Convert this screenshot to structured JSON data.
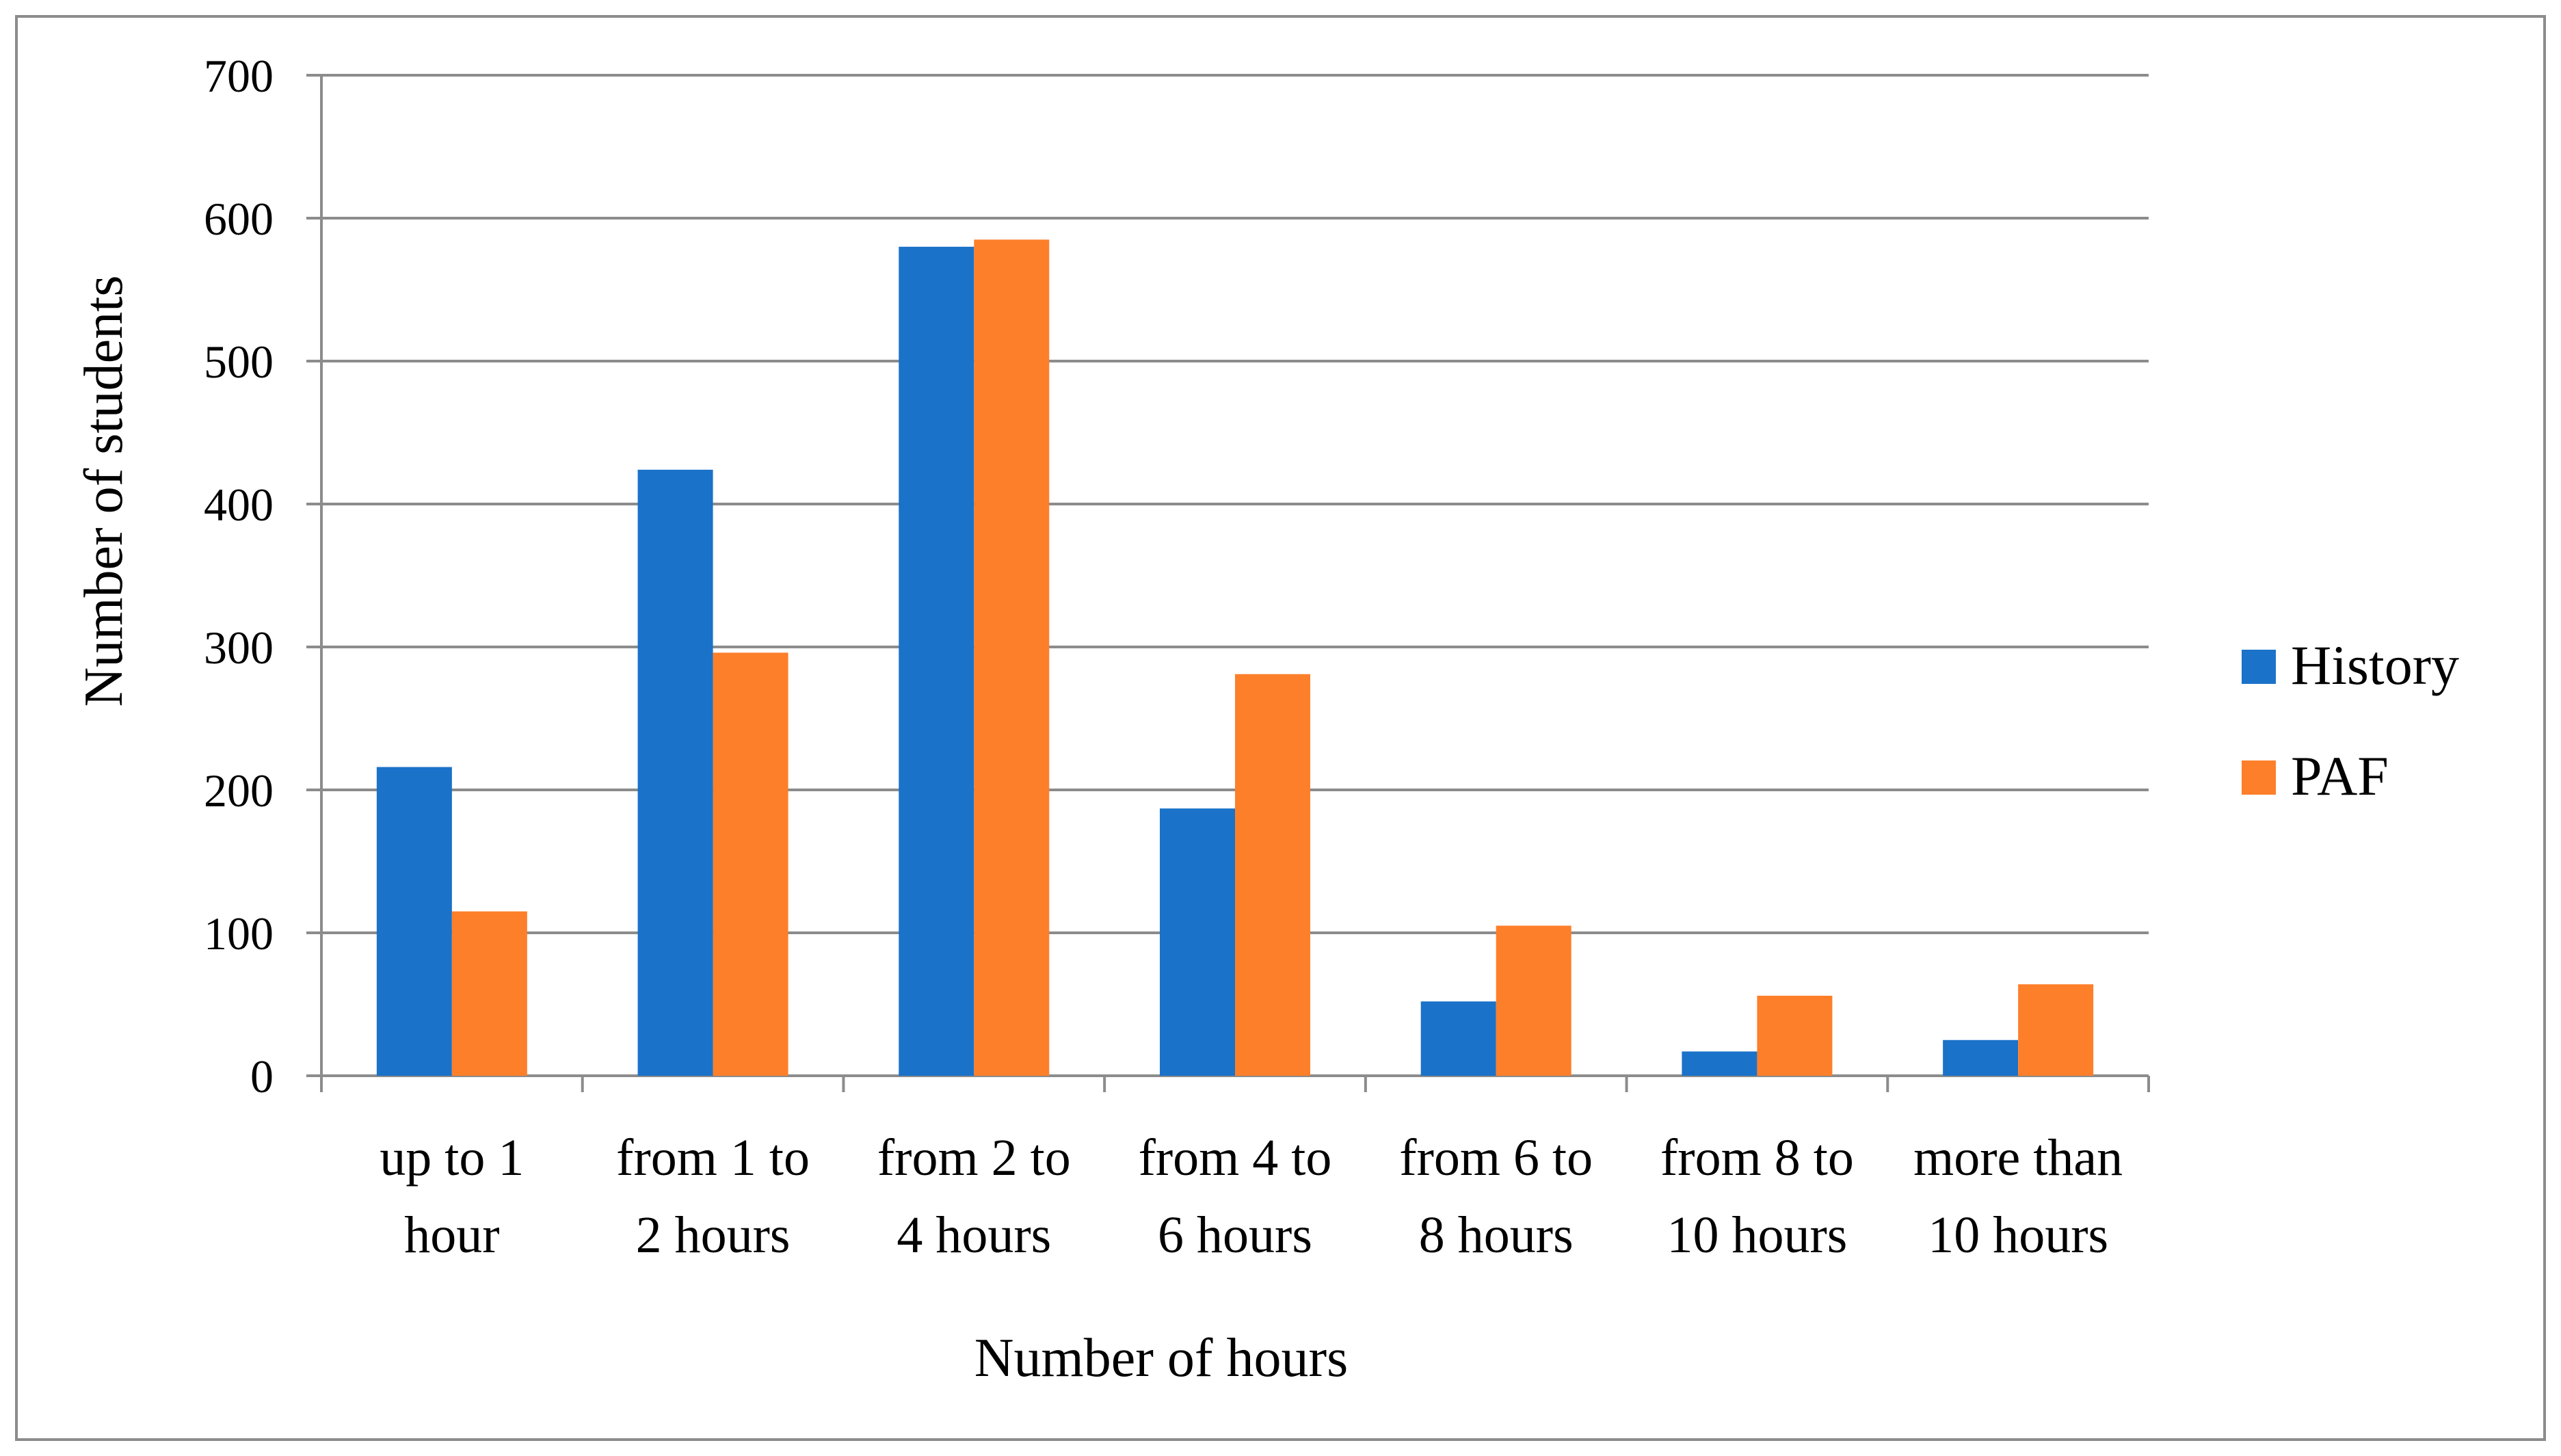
{
  "chart_data": {
    "type": "bar",
    "title": "",
    "xlabel": "Number of hours",
    "ylabel": "Number of students",
    "ylim": [
      0,
      700
    ],
    "yticks": [
      0,
      100,
      200,
      300,
      400,
      500,
      600,
      700
    ],
    "grid": true,
    "legend_position": "right",
    "categories": [
      [
        "up to 1",
        "hour"
      ],
      [
        "from 1 to",
        "2 hours"
      ],
      [
        "from 2 to",
        "4 hours"
      ],
      [
        "from 4 to",
        "6 hours"
      ],
      [
        "from 6 to",
        "8 hours"
      ],
      [
        "from 8 to",
        "10 hours"
      ],
      [
        "more than",
        "10 hours"
      ]
    ],
    "series": [
      {
        "name": "History",
        "color": "#1a72c9",
        "values": [
          216,
          424,
          580,
          187,
          52,
          17,
          25
        ]
      },
      {
        "name": "PAF",
        "color": "#fd7f2a",
        "values": [
          115,
          296,
          585,
          281,
          105,
          56,
          64
        ]
      }
    ]
  }
}
